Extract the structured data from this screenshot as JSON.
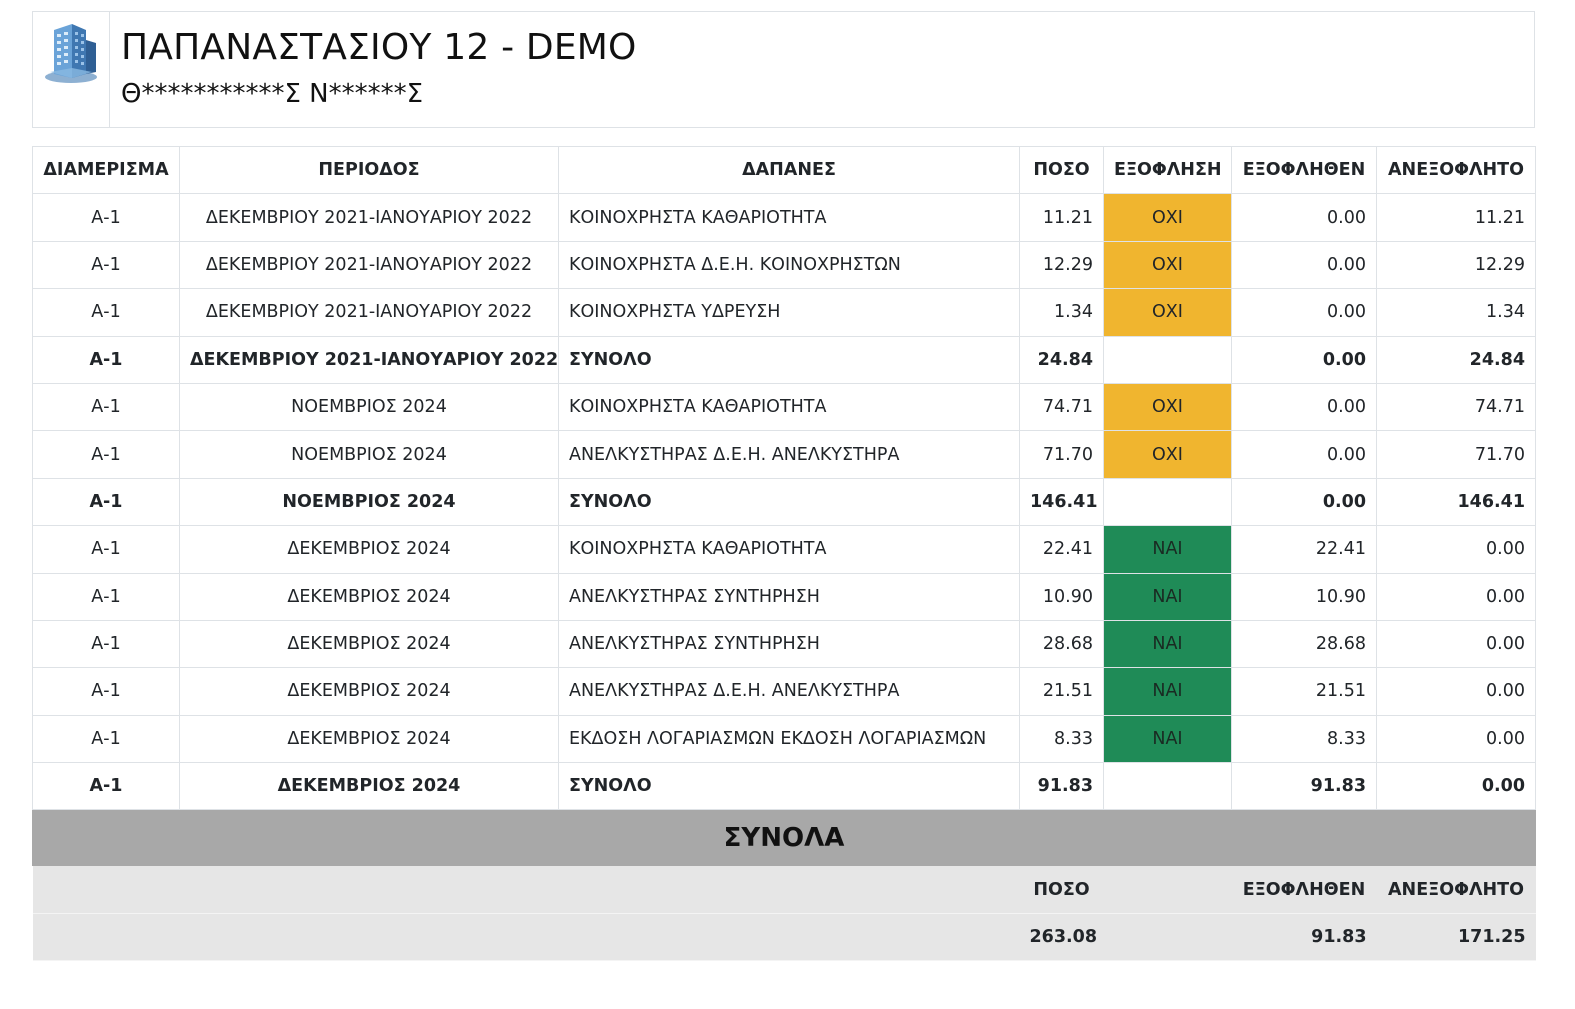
{
  "header": {
    "title": "ΠΑΠΑΝΑΣΤΑΣΙΟΥ 12 - DEMO",
    "subtitle": "Θ***********Σ Ν******Σ",
    "icon": "building-icon"
  },
  "table": {
    "headers": [
      "ΔΙΑΜΕΡΙΣΜΑ",
      "ΠΕΡΙΟΔΟΣ",
      "ΔΑΠΑΝΕΣ",
      "ΠΟΣΟ",
      "ΕΞΟΦΛΗΣΗ",
      "ΕΞΟΦΛΗΘΕΝ",
      "ΑΝΕΞΟΦΛΗΤΟ"
    ],
    "rows": [
      {
        "apt": "Α-1",
        "period": "ΔΕΚΕΜΒΡΙΟΥ 2021-ΙΑΝΟΥΑΡΙΟΥ 2022",
        "expense": "ΚΟΙΝΟΧΡΗΣΤΑ ΚΑΘΑΡΙΟΤΗΤΑ",
        "amount": "11.21",
        "paid_status": "ΟΧΙ",
        "paid": "0.00",
        "unpaid": "11.21"
      },
      {
        "apt": "Α-1",
        "period": "ΔΕΚΕΜΒΡΙΟΥ 2021-ΙΑΝΟΥΑΡΙΟΥ 2022",
        "expense": "ΚΟΙΝΟΧΡΗΣΤΑ Δ.Ε.Η. ΚΟΙΝΟΧΡΗΣΤΩΝ",
        "amount": "12.29",
        "paid_status": "ΟΧΙ",
        "paid": "0.00",
        "unpaid": "12.29"
      },
      {
        "apt": "Α-1",
        "period": "ΔΕΚΕΜΒΡΙΟΥ 2021-ΙΑΝΟΥΑΡΙΟΥ 2022",
        "expense": "ΚΟΙΝΟΧΡΗΣΤΑ ΥΔΡΕΥΣΗ",
        "amount": "1.34",
        "paid_status": "ΟΧΙ",
        "paid": "0.00",
        "unpaid": "1.34"
      },
      {
        "apt": "Α-1",
        "period": "ΔΕΚΕΜΒΡΙΟΥ 2021-ΙΑΝΟΥΑΡΙΟΥ 2022",
        "expense": "ΣΥΝΟΛΟ",
        "amount": "24.84",
        "paid_status": "",
        "paid": "0.00",
        "unpaid": "24.84",
        "summary": true
      },
      {
        "apt": "Α-1",
        "period": "ΝΟΕΜΒΡΙΟΣ 2024",
        "expense": "ΚΟΙΝΟΧΡΗΣΤΑ ΚΑΘΑΡΙΟΤΗΤΑ",
        "amount": "74.71",
        "paid_status": "ΟΧΙ",
        "paid": "0.00",
        "unpaid": "74.71"
      },
      {
        "apt": "Α-1",
        "period": "ΝΟΕΜΒΡΙΟΣ 2024",
        "expense": "ΑΝΕΛΚΥΣΤΗΡΑΣ Δ.Ε.Η. ΑΝΕΛΚΥΣΤΗΡΑ",
        "amount": "71.70",
        "paid_status": "ΟΧΙ",
        "paid": "0.00",
        "unpaid": "71.70"
      },
      {
        "apt": "Α-1",
        "period": "ΝΟΕΜΒΡΙΟΣ 2024",
        "expense": "ΣΥΝΟΛΟ",
        "amount": "146.41",
        "paid_status": "",
        "paid": "0.00",
        "unpaid": "146.41",
        "summary": true
      },
      {
        "apt": "Α-1",
        "period": "ΔΕΚΕΜΒΡΙΟΣ 2024",
        "expense": "ΚΟΙΝΟΧΡΗΣΤΑ ΚΑΘΑΡΙΟΤΗΤΑ",
        "amount": "22.41",
        "paid_status": "ΝΑΙ",
        "paid": "22.41",
        "unpaid": "0.00"
      },
      {
        "apt": "Α-1",
        "period": "ΔΕΚΕΜΒΡΙΟΣ 2024",
        "expense": "ΑΝΕΛΚΥΣΤΗΡΑΣ ΣΥΝΤΗΡΗΣΗ",
        "amount": "10.90",
        "paid_status": "ΝΑΙ",
        "paid": "10.90",
        "unpaid": "0.00"
      },
      {
        "apt": "Α-1",
        "period": "ΔΕΚΕΜΒΡΙΟΣ 2024",
        "expense": "ΑΝΕΛΚΥΣΤΗΡΑΣ ΣΥΝΤΗΡΗΣΗ",
        "amount": "28.68",
        "paid_status": "ΝΑΙ",
        "paid": "28.68",
        "unpaid": "0.00"
      },
      {
        "apt": "Α-1",
        "period": "ΔΕΚΕΜΒΡΙΟΣ 2024",
        "expense": "ΑΝΕΛΚΥΣΤΗΡΑΣ Δ.Ε.Η. ΑΝΕΛΚΥΣΤΗΡΑ",
        "amount": "21.51",
        "paid_status": "ΝΑΙ",
        "paid": "21.51",
        "unpaid": "0.00"
      },
      {
        "apt": "Α-1",
        "period": "ΔΕΚΕΜΒΡΙΟΣ 2024",
        "expense": "ΕΚΔΟΣΗ ΛΟΓΑΡΙΑΣΜΩΝ ΕΚΔΟΣΗ ΛΟΓΑΡΙΑΣΜΩΝ",
        "amount": "8.33",
        "paid_status": "ΝΑΙ",
        "paid": "8.33",
        "unpaid": "0.00"
      },
      {
        "apt": "Α-1",
        "period": "ΔΕΚΕΜΒΡΙΟΣ 2024",
        "expense": "ΣΥΝΟΛΟ",
        "amount": "91.83",
        "paid_status": "",
        "paid": "91.83",
        "unpaid": "0.00",
        "summary": true
      }
    ]
  },
  "totals": {
    "title": "ΣΥΝΟΛΑ",
    "headers": {
      "amount": "ΠΟΣΟ",
      "paid": "ΕΞΟΦΛΗΘΕΝ",
      "unpaid": "ΑΝΕΞΟΦΛΗΤΟ"
    },
    "values": {
      "amount": "263.08",
      "paid": "91.83",
      "unpaid": "171.25"
    }
  },
  "colors": {
    "unpaid_badge": "#f0b52f",
    "paid_badge": "#1f8b57",
    "totals_title_bg": "#a8a8a8",
    "totals_bg": "#e6e6e6"
  }
}
